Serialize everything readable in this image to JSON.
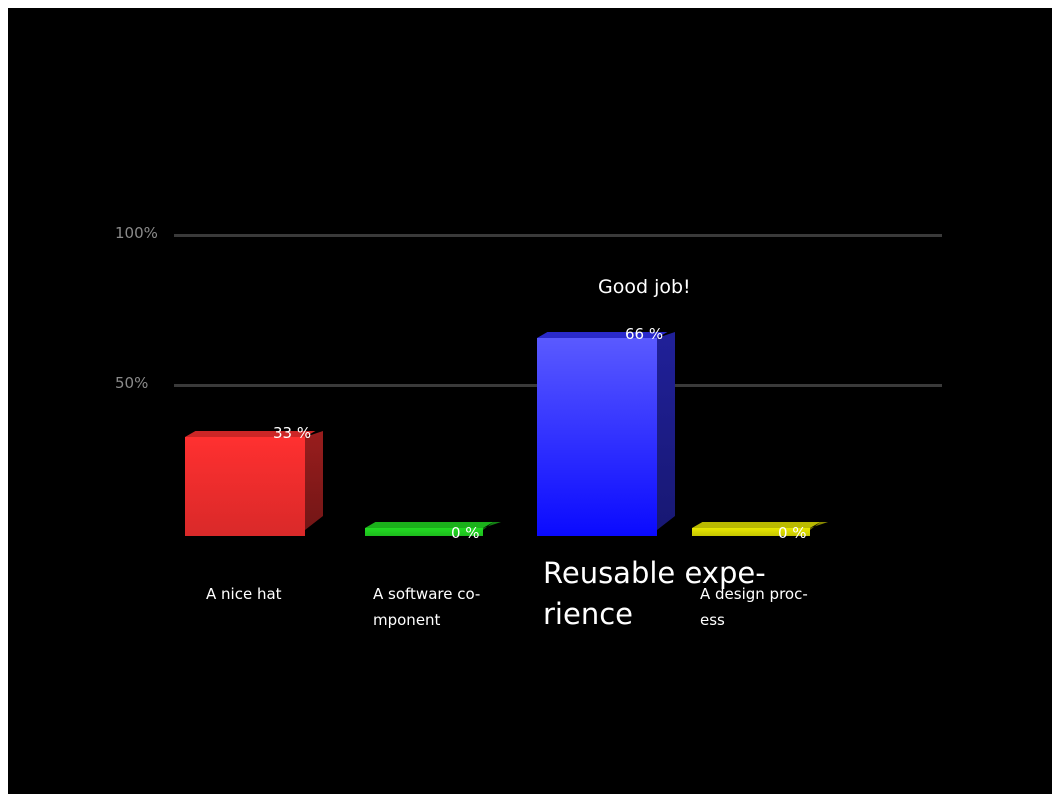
{
  "chart_data": {
    "type": "bar",
    "categories": [
      "A nice hat",
      "A software co-\nmponent",
      "Reusable expe-\nrience",
      "A design proc-\ness"
    ],
    "values": [
      33,
      0,
      66,
      0
    ],
    "value_labels": [
      "33 %",
      "0 %",
      "66 %",
      "0 %"
    ],
    "ylim": [
      0,
      100
    ],
    "yticks": [
      {
        "value": 100,
        "label": "100%"
      },
      {
        "value": 50,
        "label": "50%"
      }
    ],
    "annotation": "Good job!",
    "highlighted_category": "Reusable expe-\nrience",
    "grid": true,
    "colors": {
      "background": "#000000",
      "gridline": "#3a3a3a",
      "bars": [
        "#ff3030",
        "#22dd22",
        "#3535ff",
        "#e8e800"
      ]
    }
  }
}
